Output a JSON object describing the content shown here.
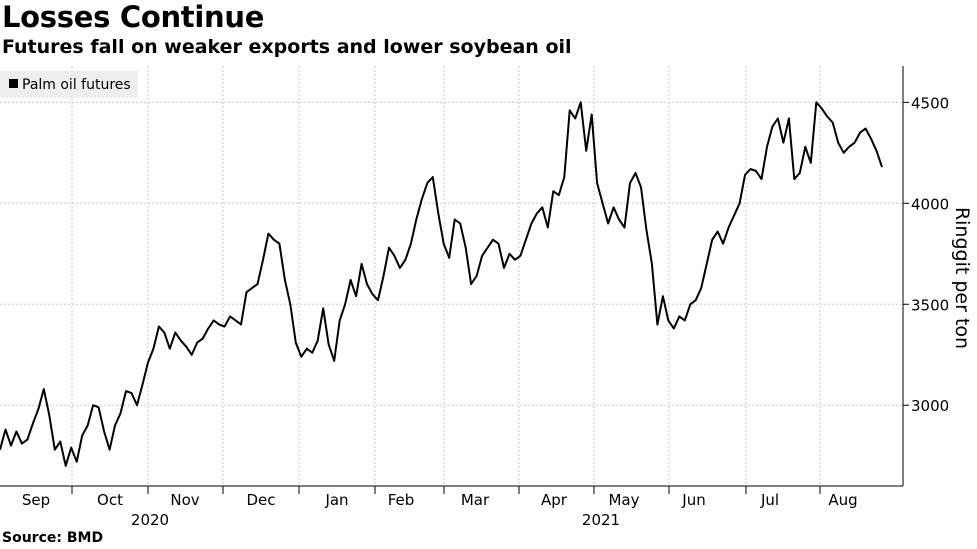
{
  "title": "Losses Continue",
  "subtitle": "Futures fall on weaker exports and lower soybean oil",
  "source": "Source: BMD",
  "chart_data": {
    "type": "line",
    "legend": {
      "label": "Palm oil futures",
      "placement": "top-left"
    },
    "ylabel": "Ringgit per ton",
    "yticks": [
      3000,
      3500,
      4000,
      4500
    ],
    "ylim": [
      2600,
      4680
    ],
    "x_month_labels": [
      "Sep",
      "Oct",
      "Nov",
      "Dec",
      "Jan",
      "Feb",
      "Mar",
      "Apr",
      "May",
      "Jun",
      "Jul",
      "Aug"
    ],
    "x_year_labels": [
      "2020",
      "2021"
    ],
    "grid": true,
    "y_axis_side": "right",
    "series": [
      {
        "name": "Palm oil futures",
        "color": "#000000",
        "values": [
          2780,
          2880,
          2800,
          2870,
          2810,
          2830,
          2910,
          2980,
          3080,
          2950,
          2780,
          2820,
          2700,
          2790,
          2720,
          2850,
          2900,
          3000,
          2990,
          2870,
          2780,
          2900,
          2960,
          3070,
          3060,
          3000,
          3100,
          3210,
          3280,
          3390,
          3360,
          3280,
          3360,
          3320,
          3290,
          3250,
          3310,
          3330,
          3380,
          3420,
          3400,
          3390,
          3440,
          3420,
          3400,
          3560,
          3580,
          3600,
          3720,
          3850,
          3820,
          3800,
          3620,
          3500,
          3310,
          3240,
          3280,
          3260,
          3320,
          3480,
          3300,
          3220,
          3420,
          3500,
          3620,
          3540,
          3700,
          3600,
          3550,
          3520,
          3640,
          3780,
          3740,
          3680,
          3720,
          3800,
          3920,
          4020,
          4100,
          4130,
          3950,
          3800,
          3730,
          3920,
          3900,
          3780,
          3600,
          3640,
          3740,
          3780,
          3820,
          3800,
          3680,
          3750,
          3720,
          3740,
          3820,
          3900,
          3950,
          3980,
          3880,
          4060,
          4040,
          4130,
          4460,
          4420,
          4500,
          4260,
          4440,
          4100,
          4000,
          3900,
          3980,
          3920,
          3880,
          4100,
          4150,
          4080,
          3870,
          3700,
          3400,
          3540,
          3420,
          3380,
          3440,
          3420,
          3500,
          3520,
          3580,
          3700,
          3820,
          3860,
          3800,
          3880,
          3940,
          4000,
          4140,
          4170,
          4160,
          4120,
          4280,
          4380,
          4420,
          4300,
          4420,
          4120,
          4150,
          4280,
          4200,
          4500,
          4470,
          4430,
          4400,
          4300,
          4250,
          4280,
          4300,
          4350,
          4370,
          4320,
          4260,
          4180
        ]
      }
    ]
  }
}
